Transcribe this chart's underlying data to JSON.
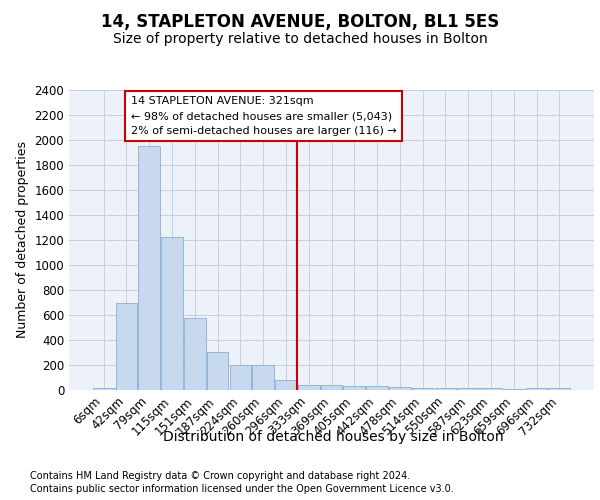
{
  "title1": "14, STAPLETON AVENUE, BOLTON, BL1 5ES",
  "title2": "Size of property relative to detached houses in Bolton",
  "xlabel": "Distribution of detached houses by size in Bolton",
  "ylabel": "Number of detached properties",
  "categories": [
    "6sqm",
    "42sqm",
    "79sqm",
    "115sqm",
    "151sqm",
    "187sqm",
    "224sqm",
    "260sqm",
    "296sqm",
    "333sqm",
    "369sqm",
    "405sqm",
    "442sqm",
    "478sqm",
    "514sqm",
    "550sqm",
    "587sqm",
    "623sqm",
    "659sqm",
    "696sqm",
    "732sqm"
  ],
  "values": [
    15,
    700,
    1950,
    1225,
    575,
    305,
    200,
    200,
    80,
    40,
    40,
    35,
    30,
    25,
    20,
    15,
    15,
    20,
    10,
    15,
    15
  ],
  "bar_color": "#c8d8ee",
  "bar_edge_color": "#8aaed4",
  "axes_bg": "#edf1f9",
  "grid_color": "#c5cfe0",
  "vline_color": "#cc0000",
  "vline_x": 9.0,
  "ann_title": "14 STAPLETON AVENUE: 321sqm",
  "ann_line1": "← 98% of detached houses are smaller (5,043)",
  "ann_line2": "2% of semi-detached houses are larger (116) →",
  "ann_box_edge": "#cc0000",
  "footer1": "Contains HM Land Registry data © Crown copyright and database right 2024.",
  "footer2": "Contains public sector information licensed under the Open Government Licence v3.0.",
  "ylim": [
    0,
    2400
  ],
  "yticks": [
    0,
    200,
    400,
    600,
    800,
    1000,
    1200,
    1400,
    1600,
    1800,
    2000,
    2200,
    2400
  ],
  "title1_fontsize": 12,
  "title2_fontsize": 10,
  "xlabel_fontsize": 10,
  "ylabel_fontsize": 9,
  "tick_fontsize": 8.5,
  "footer_fontsize": 7
}
